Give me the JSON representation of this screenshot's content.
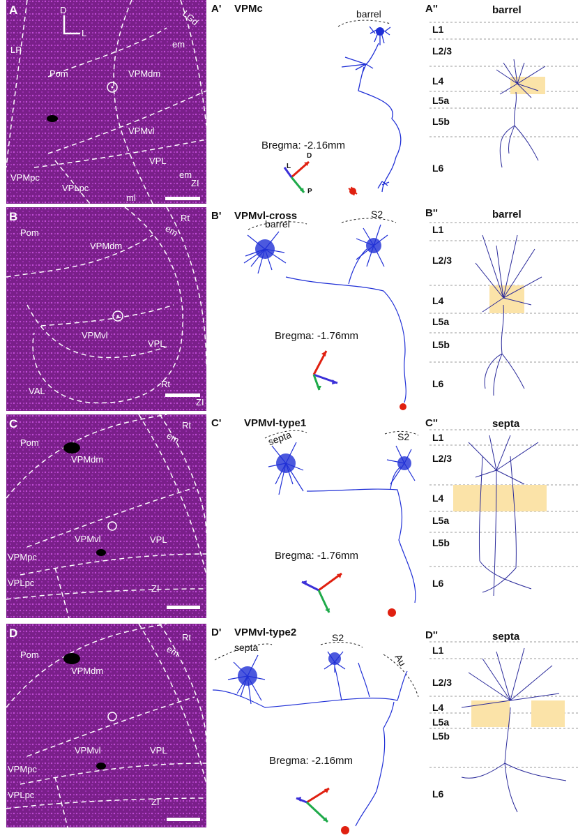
{
  "micro_panels": [
    {
      "letter": "A",
      "regions": [
        "LP",
        "Pom",
        "VPMdm",
        "VPMvl",
        "VPL",
        "VPMpc",
        "VPLpc",
        "LGd",
        "em",
        "em",
        "ml",
        "ZI"
      ],
      "axis_d": "D",
      "axis_l": "L"
    },
    {
      "letter": "B",
      "regions": [
        "Pom",
        "VPMdm",
        "VPMvl",
        "VPL",
        "VAL",
        "Rt",
        "Rt",
        "em",
        "ZI"
      ]
    },
    {
      "letter": "C",
      "regions": [
        "Pom",
        "VPMdm",
        "VPMvl",
        "VPL",
        "VPMpc",
        "VPLpc",
        "ZI",
        "Rt",
        "em"
      ]
    },
    {
      "letter": "D",
      "regions": [
        "Pom",
        "VPMdm",
        "VPMvl",
        "VPL",
        "VPMpc",
        "VPLpc",
        "ZI",
        "Rt",
        "em"
      ]
    }
  ],
  "trace_panels": [
    {
      "letter": "A'",
      "title": "VPMc",
      "bregma": "Bregma: -2.16mm",
      "regions": [
        "barrel"
      ],
      "axis_labels": [
        "L",
        "D",
        "P"
      ]
    },
    {
      "letter": "B'",
      "title": "VPMvl-cross",
      "bregma": "Bregma: -1.76mm",
      "regions": [
        "barrel",
        "S2"
      ]
    },
    {
      "letter": "C'",
      "title": "VPMvl-type1",
      "bregma": "Bregma: -1.76mm",
      "regions": [
        "septa",
        "S2"
      ]
    },
    {
      "letter": "D'",
      "title": "VPMvl-type2",
      "bregma": "Bregma: -2.16mm",
      "regions": [
        "septa",
        "S2",
        "Au"
      ]
    }
  ],
  "layer_panels": [
    {
      "letter": "A''",
      "title": "barrel",
      "layers": [
        "L1",
        "L2/3",
        "L4",
        "L5a",
        "L5b",
        "L6"
      ]
    },
    {
      "letter": "B''",
      "title": "barrel",
      "layers": [
        "L1",
        "L2/3",
        "L4",
        "L5a",
        "L5b",
        "L6"
      ]
    },
    {
      "letter": "C''",
      "title": "septa",
      "layers": [
        "L1",
        "L2/3",
        "L4",
        "L5a",
        "L5b",
        "L6"
      ]
    },
    {
      "letter": "D''",
      "title": "septa",
      "layers": [
        "L1",
        "L2/3",
        "L4",
        "L5a",
        "L5b",
        "L6"
      ]
    }
  ],
  "colors": {
    "tissue": "#7a1f8a",
    "axon": "#1f2fd6",
    "layer_axon": "#2a2a9a",
    "soma": "#e02010",
    "highlight": "#fbe3a8"
  }
}
